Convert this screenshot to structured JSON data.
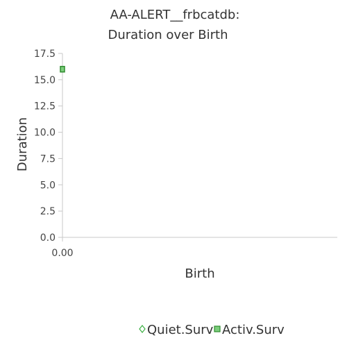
{
  "chart_data": {
    "type": "scatter",
    "title_lines": [
      "AA-ALERT__frbcatdb:",
      "Duration over Birth"
    ],
    "xlabel": "Birth",
    "ylabel": "Duration",
    "xlim": [
      0,
      1
    ],
    "ylim": [
      0,
      17.5
    ],
    "x_ticks": [
      "0.00"
    ],
    "y_ticks": [
      "0.0",
      "2.5",
      "5.0",
      "7.5",
      "10.0",
      "12.5",
      "15.0",
      "17.5"
    ],
    "grid": false,
    "legend_position": "bottom",
    "series": [
      {
        "name": "Quiet.Surv",
        "marker": "diamond",
        "color": "#3cb043",
        "fill": "#c8f0c8",
        "points": []
      },
      {
        "name": "Activ.Surv",
        "marker": "square",
        "color": "#2e8b2e",
        "fill": "#7ccd7c",
        "points": [
          {
            "x": 0,
            "y": 16.0
          }
        ]
      }
    ]
  }
}
